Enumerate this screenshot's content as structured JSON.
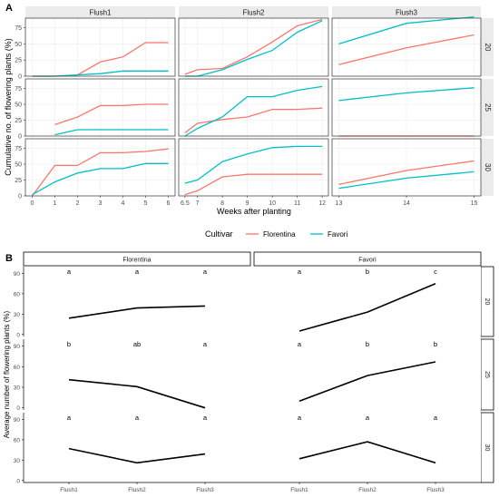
{
  "chart_data": [
    {
      "panel_label": "A",
      "type": "line",
      "ylabel": "Cumulative no. of flowering plants (%)",
      "xlabel": "Weeks after planting",
      "legend": {
        "title": "Cultivar",
        "placement": "bottom",
        "entries": [
          "Florentina",
          "Favori"
        ]
      },
      "colors": {
        "Florentina": "#f8766d",
        "Favori": "#00bfc4"
      },
      "grid": true,
      "ylim": [
        0,
        90
      ],
      "y_ticks": [
        "0",
        "25",
        "50",
        "75"
      ],
      "columns": [
        {
          "label": "Flush1",
          "xlim": [
            -0.3,
            6.3
          ],
          "x_ticks": [
            "0",
            "1",
            "2",
            "3",
            "4",
            "5",
            "6"
          ]
        },
        {
          "label": "Flush2",
          "xlim": [
            6.25,
            12.25
          ],
          "x_ticks": [
            "6.5",
            "7",
            "8",
            "9",
            "10",
            "11",
            "12"
          ]
        },
        {
          "label": "Flush3",
          "xlim": [
            12.9,
            15.1
          ],
          "x_ticks": [
            "13",
            "14",
            "15"
          ]
        }
      ],
      "rows": [
        "20",
        "25",
        "30"
      ],
      "series": [
        {
          "name": "Florentina",
          "row": "20",
          "col": "Flush1",
          "x": [
            0,
            1,
            2,
            3,
            4,
            5,
            6
          ],
          "y": [
            0,
            0,
            2,
            22,
            30,
            52,
            52
          ]
        },
        {
          "name": "Favori",
          "row": "20",
          "col": "Flush1",
          "x": [
            0,
            1,
            2,
            3,
            4,
            5,
            6
          ],
          "y": [
            0,
            0,
            2,
            4,
            8,
            8,
            8
          ]
        },
        {
          "name": "Florentina",
          "row": "20",
          "col": "Flush2",
          "x": [
            6.5,
            7,
            8,
            9,
            10,
            11,
            12
          ],
          "y": [
            3,
            10,
            12,
            30,
            53,
            78,
            88
          ]
        },
        {
          "name": "Favori",
          "row": "20",
          "col": "Flush2",
          "x": [
            6.5,
            7,
            8,
            9,
            10,
            11,
            12
          ],
          "y": [
            0,
            0,
            10,
            26,
            40,
            68,
            86
          ]
        },
        {
          "name": "Florentina",
          "row": "20",
          "col": "Flush3",
          "x": [
            13,
            14,
            15
          ],
          "y": [
            18,
            44,
            64
          ]
        },
        {
          "name": "Favori",
          "row": "20",
          "col": "Flush3",
          "x": [
            13,
            14,
            15
          ],
          "y": [
            50,
            82,
            92
          ]
        },
        {
          "name": "Florentina",
          "row": "25",
          "col": "Flush1",
          "x": [
            1,
            2,
            3,
            4,
            5,
            6
          ],
          "y": [
            18,
            30,
            48,
            48,
            50,
            50
          ]
        },
        {
          "name": "Favori",
          "row": "25",
          "col": "Flush1",
          "x": [
            1,
            2,
            3,
            4,
            5,
            6
          ],
          "y": [
            2,
            10,
            10,
            10,
            10,
            10
          ]
        },
        {
          "name": "Florentina",
          "row": "25",
          "col": "Flush2",
          "x": [
            6.5,
            7,
            8,
            9,
            10,
            11,
            12
          ],
          "y": [
            5,
            20,
            26,
            30,
            42,
            42,
            44
          ]
        },
        {
          "name": "Favori",
          "row": "25",
          "col": "Flush2",
          "x": [
            6.5,
            7,
            8,
            9,
            10,
            11,
            12
          ],
          "y": [
            0,
            12,
            30,
            62,
            62,
            72,
            78
          ]
        },
        {
          "name": "Florentina",
          "row": "25",
          "col": "Flush3",
          "x": [
            13,
            14,
            15
          ],
          "y": [
            0,
            0,
            0
          ]
        },
        {
          "name": "Favori",
          "row": "25",
          "col": "Flush3",
          "x": [
            13,
            14,
            15
          ],
          "y": [
            56,
            68,
            76
          ]
        },
        {
          "name": "Florentina",
          "row": "30",
          "col": "Flush1",
          "x": [
            0,
            1,
            2,
            3,
            4,
            5,
            6
          ],
          "y": [
            0,
            48,
            48,
            68,
            68,
            70,
            74
          ]
        },
        {
          "name": "Favori",
          "row": "30",
          "col": "Flush1",
          "x": [
            0,
            1,
            2,
            3,
            4,
            5,
            6
          ],
          "y": [
            2,
            22,
            36,
            43,
            43,
            51,
            51
          ]
        },
        {
          "name": "Florentina",
          "row": "30",
          "col": "Flush2",
          "x": [
            6.5,
            7,
            8,
            9,
            10,
            11,
            12
          ],
          "y": [
            2,
            8,
            30,
            34,
            34,
            34,
            34
          ]
        },
        {
          "name": "Favori",
          "row": "30",
          "col": "Flush2",
          "x": [
            6.5,
            7,
            8,
            9,
            10,
            11,
            12
          ],
          "y": [
            20,
            25,
            54,
            66,
            76,
            78,
            78
          ]
        },
        {
          "name": "Florentina",
          "row": "30",
          "col": "Flush3",
          "x": [
            13,
            14,
            15
          ],
          "y": [
            18,
            40,
            55
          ]
        },
        {
          "name": "Favori",
          "row": "30",
          "col": "Flush3",
          "x": [
            13,
            14,
            15
          ],
          "y": [
            12,
            28,
            38
          ]
        }
      ]
    },
    {
      "panel_label": "B",
      "type": "line",
      "ylabel": "Average number of flowering plants (%)",
      "ylim": [
        -3,
        100
      ],
      "y_ticks": [
        "0",
        "30",
        "60",
        "90"
      ],
      "grid": false,
      "columns": [
        "Florentina",
        "Favori"
      ],
      "rows": [
        "20",
        "25",
        "30"
      ],
      "categories": [
        "Flush1",
        "Flush2",
        "Flush3"
      ],
      "series": [
        {
          "col": "Florentina",
          "row": "20",
          "values": [
            24,
            39,
            42
          ],
          "letters": [
            "a",
            "a",
            "a"
          ]
        },
        {
          "col": "Favori",
          "row": "20",
          "values": [
            5,
            33,
            75
          ],
          "letters": [
            "a",
            "b",
            "c"
          ]
        },
        {
          "col": "Florentina",
          "row": "25",
          "values": [
            41,
            31,
            0
          ],
          "letters": [
            "b",
            "ab",
            "a"
          ]
        },
        {
          "col": "Favori",
          "row": "25",
          "values": [
            10,
            47,
            67
          ],
          "letters": [
            "a",
            "b",
            "b"
          ]
        },
        {
          "col": "Florentina",
          "row": "30",
          "values": [
            47,
            26,
            39
          ],
          "letters": [
            "a",
            "a",
            "a"
          ]
        },
        {
          "col": "Favori",
          "row": "30",
          "values": [
            32,
            57,
            26
          ],
          "letters": [
            "a",
            "a",
            "a"
          ]
        }
      ]
    }
  ]
}
